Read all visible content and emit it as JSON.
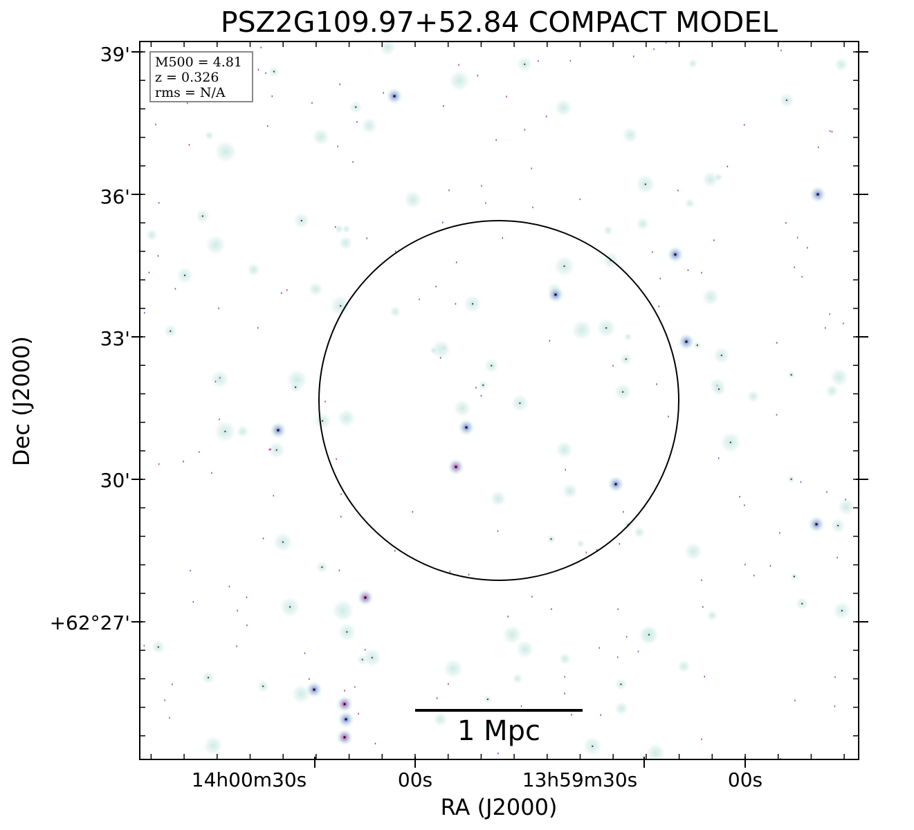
{
  "title": "PSZ2G109.97+52.84 COMPACT MODEL",
  "info_box": {
    "m500": "M500 = 4.81",
    "z": "z = 0.326",
    "rms": "rms = N/A"
  },
  "axes": {
    "xlabel": "RA (J2000)",
    "ylabel": "Dec (J2000)",
    "x_ticks": [
      "14h00m30s",
      "00s",
      "13h59m30s",
      "00s"
    ],
    "y_ticks": [
      "39'",
      "36'",
      "33'",
      "30'",
      "+62°27'"
    ]
  },
  "scale_bar": {
    "label": "1 Mpc"
  },
  "colors": {
    "frame": "#000000",
    "source_halo": "#d6efe9",
    "source_core": "#6f7fd0",
    "source_hot": "#c0509a"
  }
}
